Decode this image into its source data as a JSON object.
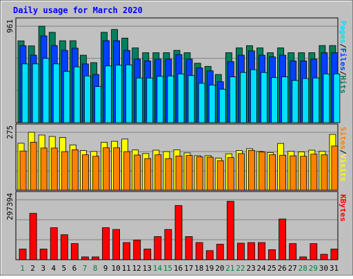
{
  "chart_data": {
    "type": "bar",
    "title": "Daily usage for March 2020",
    "days": [
      "1",
      "2",
      "3",
      "4",
      "5",
      "6",
      "7",
      "8",
      "9",
      "10",
      "11",
      "12",
      "13",
      "14",
      "15",
      "16",
      "17",
      "18",
      "19",
      "20",
      "21",
      "22",
      "23",
      "24",
      "25",
      "26",
      "27",
      "28",
      "29",
      "30",
      "31"
    ],
    "weekend_days": [
      "1",
      "7",
      "8",
      "14",
      "15",
      "21",
      "22",
      "28",
      "29"
    ],
    "colors": {
      "background": "#c0c0c0",
      "title": "#0000ff",
      "hits": "#00805c",
      "files": "#0040ff",
      "pages": "#00e0ff",
      "visits": "#ffff00",
      "sites": "#ff8000",
      "kbytes": "#ff0000",
      "weekday_label": "#000000",
      "weekend_label": "#008040"
    },
    "panels": [
      {
        "id": "requests",
        "max_label": "961",
        "max": 961,
        "legend": [
          "Pages",
          "/",
          "Files",
          "/",
          "Hits"
        ],
        "legend_colors": [
          "#00e0ff",
          "#000000",
          "#0040ff",
          "#000000",
          "#00805c"
        ],
        "series": [
          {
            "name": "Hits",
            "color": "#00805c",
            "values": [
              815,
              765,
              961,
              900,
              816,
              816,
              672,
              598,
              900,
              928,
              842,
              745,
              697,
              697,
              697,
              720,
              697,
              592,
              561,
              480,
              697,
              745,
              767,
              745,
              697,
              745,
              697,
              697,
              697,
              768,
              768
            ]
          },
          {
            "name": "Files",
            "color": "#0040ff",
            "values": [
              767,
              672,
              865,
              768,
              720,
              742,
              585,
              480,
              817,
              817,
              720,
              633,
              616,
              633,
              633,
              678,
              633,
              545,
              516,
              408,
              608,
              672,
              715,
              672,
              655,
              672,
              616,
              616,
              633,
              697,
              697
            ]
          },
          {
            "name": "Pages",
            "color": "#00e0ff",
            "values": [
              585,
              585,
              640,
              585,
              510,
              555,
              465,
              360,
              565,
              573,
              575,
              445,
              444,
              461,
              465,
              485,
              468,
              392,
              375,
              333,
              456,
              500,
              527,
              500,
              448,
              456,
              420,
              439,
              445,
              485,
              485
            ]
          }
        ]
      },
      {
        "id": "visitors",
        "max_label": "275",
        "max": 275,
        "legend": [
          "Sites",
          "/",
          "Visits"
        ],
        "legend_colors": [
          "#ff8000",
          "#000000",
          "#ffff00"
        ],
        "series": [
          {
            "name": "Visits",
            "color": "#ffff00",
            "values": [
              223,
              275,
              262,
              255,
              250,
              215,
              188,
              184,
              228,
              232,
              243,
              191,
              174,
              190,
              183,
              192,
              177,
              164,
              164,
              152,
              173,
              188,
              197,
              184,
              178,
              222,
              185,
              182,
              190,
              185,
              265
            ]
          },
          {
            "name": "Sites",
            "color": "#ff8000",
            "values": [
              186,
              228,
              200,
              200,
              183,
              192,
              168,
              161,
              201,
              201,
              183,
              167,
              150,
              168,
              150,
              162,
              165,
              158,
              157,
              140,
              155,
              174,
              189,
              181,
              168,
              166,
              163,
              161,
              171,
              168,
              210
            ]
          }
        ]
      },
      {
        "id": "kbytes",
        "max_label": "297394",
        "max": 297394,
        "legend": [
          "KBytes"
        ],
        "legend_colors": [
          "#ff0000"
        ],
        "series": [
          {
            "name": "KBytes",
            "color": "#ff0000",
            "values": [
              53000,
              230000,
              53000,
              159000,
              124000,
              80000,
              14000,
              14000,
              159000,
              150000,
              85000,
              97000,
              53000,
              115000,
              150000,
              269000,
              115000,
              85000,
              45000,
              77000,
              290000,
              82000,
              85000,
              85000,
              50000,
              202000,
              80000,
              14000,
              80000,
              27000,
              53000
            ]
          }
        ]
      }
    ]
  }
}
